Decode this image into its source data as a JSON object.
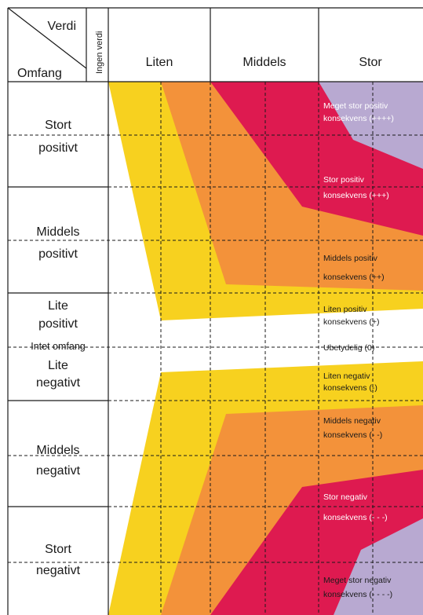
{
  "header": {
    "corner_value": "Verdi",
    "corner_extent": "Omfang",
    "no_value": "Ingen verdi",
    "columns": [
      "Liten",
      "Middels",
      "Stor"
    ]
  },
  "rows": {
    "stort_positivt": [
      "Stort",
      "positivt"
    ],
    "middels_positivt": [
      "Middels",
      "positivt"
    ],
    "lite_positivt": [
      "Lite",
      "positivt"
    ],
    "intet_omfang": "Intet omfang",
    "lite_negativt": [
      "Lite",
      "negativt"
    ],
    "middels_negativt": [
      "Middels",
      "negativt"
    ],
    "stort_negativt": [
      "Stort",
      "negativt"
    ]
  },
  "consequences": {
    "meget_stor_positiv": [
      "Meget stor positiv",
      "konsekvens (++++)"
    ],
    "stor_positiv": [
      "Stor positiv",
      "konsekvens (+++)"
    ],
    "middels_positiv": [
      "Middels positiv",
      "konsekvens (++)"
    ],
    "liten_positiv": [
      "Liten positiv",
      "konsekvens (+)"
    ],
    "ubetydelig": "Ubetydelig (0)",
    "liten_negativ": [
      "Liten negativ",
      "konsekvens (-)"
    ],
    "middels_negativ": [
      "Middels negativ",
      "konsekvens (- -)"
    ],
    "stor_negativ": [
      "Stor negativ",
      "konsekvens (- - -)"
    ],
    "meget_stor_negativ": [
      "Meget stor negativ",
      "konsekvens (- - - -)"
    ]
  },
  "colors": {
    "small": "#f7d11f",
    "medium": "#f3923a",
    "large": "#de1a50",
    "very_large": "#b8a9d1",
    "grid": "#1a1a1a"
  }
}
